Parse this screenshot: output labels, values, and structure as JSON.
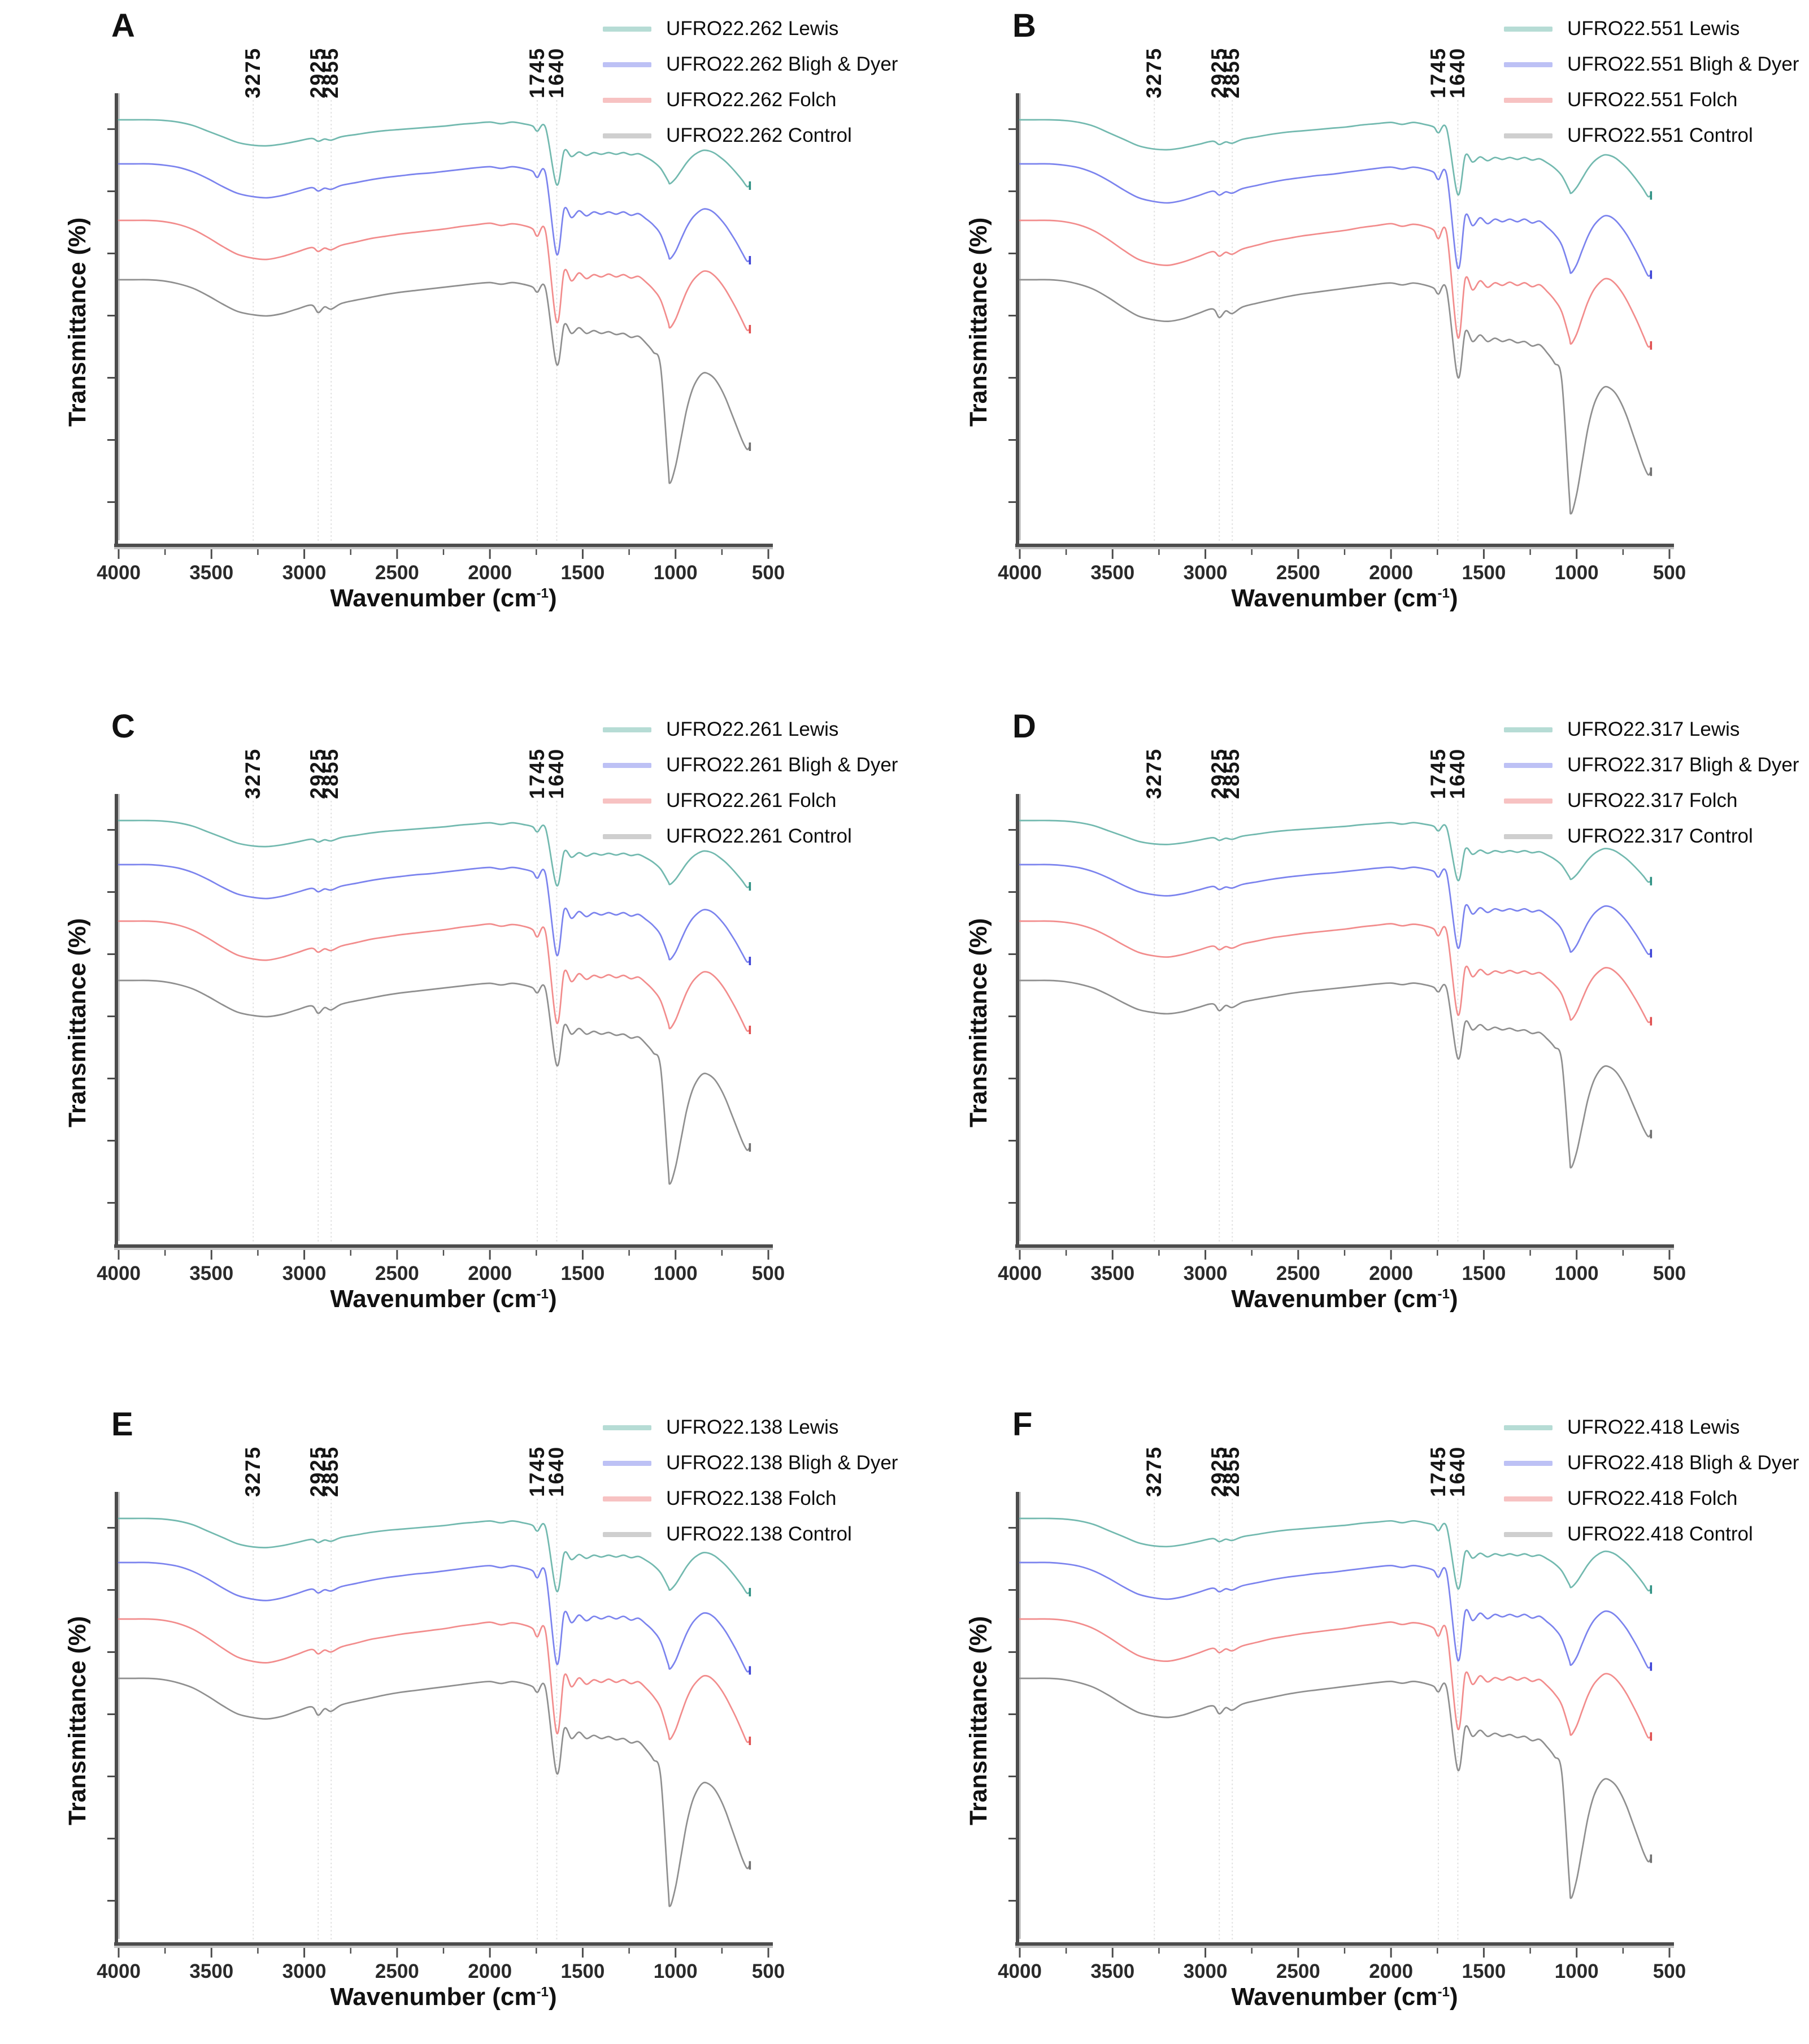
{
  "figure": {
    "description": "Six-panel FTIR transmittance spectra comparison of lipid extraction methods",
    "ylabel": "Transmittance (%)",
    "xlabel_prefix": "Wavenumber (cm",
    "xlabel_sup": "-1",
    "xlabel_suffix": ")",
    "x_ticks": [
      "4000",
      "3500",
      "3000",
      "2500",
      "2000",
      "1500",
      "1000",
      "500"
    ]
  },
  "colors": {
    "curve": {
      "lewis": "#72b9af",
      "bligh_dyer": "#7b83ee",
      "folch": "#f28c8c",
      "control": "#8f8f8f"
    },
    "legend_swatch": {
      "lewis": "#b6dcd5",
      "bligh_dyer": "#bdc1f5",
      "folch": "#f7c2c2",
      "control": "#cfcfcf"
    },
    "end_marker": {
      "lewis": "#2f9183",
      "bligh_dyer": "#3d43d6",
      "folch": "#e04f4f",
      "control": "#6f6f6f"
    },
    "axis": "#4c4c4c",
    "axis_shadow": "#c6c6c6",
    "vline": "#e2e2e2",
    "text": "#111111"
  },
  "chart_data": {
    "type": "line",
    "title": "",
    "xlabel": "Wavenumber (cm⁻¹)",
    "ylabel": "Transmittance (%)",
    "legend_position": "top-right",
    "x_axis": {
      "min": 4000,
      "max": 500,
      "direction": "decreasing",
      "ticks": [
        4000,
        3500,
        3000,
        2500,
        2000,
        1500,
        1000,
        500
      ],
      "minor_ticks_every": 250
    },
    "y_axis": {
      "label": "Transmittance (%)",
      "tick_labels": "none",
      "note": "no numeric y labels; the four spectra in each panel are vertically offset (stacked); values below are plotted depth (px) beneath each curve's plateau"
    },
    "band_annotations": [
      {
        "label": "3275",
        "wavenumber": 3275
      },
      {
        "label": "2925",
        "wavenumber": 2925
      },
      {
        "label": "2855",
        "wavenumber": 2855
      },
      {
        "label": "1745",
        "wavenumber": 1745
      },
      {
        "label": "1640",
        "wavenumber": 1640
      }
    ],
    "x": [
      4000,
      3920,
      3840,
      3760,
      3680,
      3600,
      3520,
      3440,
      3360,
      3275,
      3200,
      3120,
      3040,
      2960,
      2925,
      2890,
      2855,
      2800,
      2720,
      2640,
      2560,
      2480,
      2400,
      2320,
      2240,
      2160,
      2080,
      2000,
      1940,
      1880,
      1820,
      1770,
      1745,
      1700,
      1640,
      1600,
      1560,
      1520,
      1480,
      1440,
      1400,
      1360,
      1320,
      1280,
      1240,
      1200,
      1160,
      1120,
      1080,
      1040,
      1030,
      1000,
      970,
      940,
      910,
      880,
      850,
      820,
      790,
      760,
      730,
      700,
      670,
      640,
      615,
      600
    ],
    "series_baseline_offsets": {
      "lewis": 200,
      "bligh_dyer": 278,
      "folch": 378,
      "control": 483
    },
    "method_shapes_depth": {
      "lewis": [
        0,
        0,
        0,
        1,
        4,
        10,
        20,
        30,
        40,
        45,
        46,
        43,
        38,
        33,
        38,
        34,
        36,
        30,
        26,
        22,
        19,
        17,
        15,
        13,
        11,
        8,
        6,
        4,
        7,
        4,
        7,
        11,
        20,
        14,
        115,
        55,
        65,
        57,
        63,
        58,
        61,
        58,
        61,
        58,
        62,
        60,
        66,
        74,
        86,
        108,
        113,
        104,
        90,
        76,
        65,
        58,
        54,
        55,
        59,
        66,
        74,
        84,
        95,
        107,
        118,
        116
      ],
      "bligh_dyer": [
        0,
        0,
        0,
        2,
        6,
        14,
        26,
        40,
        52,
        58,
        60,
        56,
        49,
        42,
        48,
        43,
        45,
        38,
        33,
        28,
        24,
        21,
        18,
        16,
        13,
        10,
        7,
        5,
        8,
        5,
        8,
        13,
        24,
        17,
        160,
        80,
        95,
        83,
        92,
        85,
        89,
        85,
        89,
        85,
        91,
        88,
        97,
        108,
        125,
        160,
        168,
        155,
        133,
        112,
        96,
        86,
        80,
        81,
        87,
        97,
        109,
        124,
        140,
        158,
        172,
        170
      ],
      "folch": [
        0,
        0,
        0,
        2,
        7,
        16,
        30,
        46,
        60,
        67,
        69,
        64,
        56,
        48,
        55,
        49,
        52,
        44,
        38,
        32,
        28,
        24,
        21,
        18,
        15,
        11,
        8,
        5,
        9,
        6,
        9,
        15,
        28,
        20,
        180,
        90,
        107,
        93,
        103,
        96,
        100,
        95,
        100,
        96,
        102,
        99,
        109,
        122,
        141,
        180,
        190,
        175,
        150,
        126,
        108,
        97,
        90,
        91,
        98,
        109,
        123,
        140,
        158,
        178,
        194,
        192
      ],
      "control": [
        0,
        0,
        0,
        2,
        7,
        15,
        28,
        43,
        56,
        62,
        64,
        60,
        52,
        45,
        58,
        48,
        52,
        42,
        36,
        31,
        26,
        22,
        19,
        16,
        13,
        10,
        7,
        5,
        8,
        5,
        8,
        13,
        22,
        16,
        150,
        80,
        95,
        85,
        95,
        90,
        95,
        92,
        97,
        95,
        102,
        100,
        112,
        128,
        155,
        330,
        360,
        330,
        280,
        230,
        195,
        175,
        165,
        167,
        175,
        190,
        210,
        235,
        260,
        285,
        300,
        295
      ]
    },
    "panels": [
      {
        "label": "A",
        "sample": "UFRO22.262",
        "depth_scale": 1.0,
        "series": [
          {
            "name": "UFRO22.262 Lewis",
            "method": "lewis"
          },
          {
            "name": "UFRO22.262 Bligh & Dyer",
            "method": "bligh_dyer"
          },
          {
            "name": "UFRO22.262 Folch",
            "method": "folch"
          },
          {
            "name": "UFRO22.262 Control",
            "method": "control"
          }
        ]
      },
      {
        "label": "B",
        "sample": "UFRO22.551",
        "depth_scale": 1.15,
        "series": [
          {
            "name": "UFRO22.551 Lewis",
            "method": "lewis"
          },
          {
            "name": "UFRO22.551 Bligh & Dyer",
            "method": "bligh_dyer"
          },
          {
            "name": "UFRO22.551 Folch",
            "method": "folch"
          },
          {
            "name": "UFRO22.551 Control",
            "method": "control"
          }
        ]
      },
      {
        "label": "C",
        "sample": "UFRO22.261",
        "depth_scale": 1.0,
        "series": [
          {
            "name": "UFRO22.261 Lewis",
            "method": "lewis"
          },
          {
            "name": "UFRO22.261 Bligh & Dyer",
            "method": "bligh_dyer"
          },
          {
            "name": "UFRO22.261 Folch",
            "method": "folch"
          },
          {
            "name": "UFRO22.261 Control",
            "method": "control"
          }
        ]
      },
      {
        "label": "D",
        "sample": "UFRO22.317",
        "depth_scale": 0.92,
        "series": [
          {
            "name": "UFRO22.317 Lewis",
            "method": "lewis"
          },
          {
            "name": "UFRO22.317 Bligh & Dyer",
            "method": "bligh_dyer"
          },
          {
            "name": "UFRO22.317 Folch",
            "method": "folch"
          },
          {
            "name": "UFRO22.317 Control",
            "method": "control"
          }
        ]
      },
      {
        "label": "E",
        "sample": "UFRO22.138",
        "depth_scale": 1.12,
        "series": [
          {
            "name": "UFRO22.138 Lewis",
            "method": "lewis"
          },
          {
            "name": "UFRO22.138 Bligh & Dyer",
            "method": "bligh_dyer"
          },
          {
            "name": "UFRO22.138 Folch",
            "method": "folch"
          },
          {
            "name": "UFRO22.138 Control",
            "method": "control"
          }
        ]
      },
      {
        "label": "F",
        "sample": "UFRO22.418",
        "depth_scale": 1.08,
        "series": [
          {
            "name": "UFRO22.418 Lewis",
            "method": "lewis"
          },
          {
            "name": "UFRO22.418 Bligh & Dyer",
            "method": "bligh_dyer"
          },
          {
            "name": "UFRO22.418 Folch",
            "method": "folch"
          },
          {
            "name": "UFRO22.418 Control",
            "method": "control"
          }
        ]
      }
    ]
  }
}
